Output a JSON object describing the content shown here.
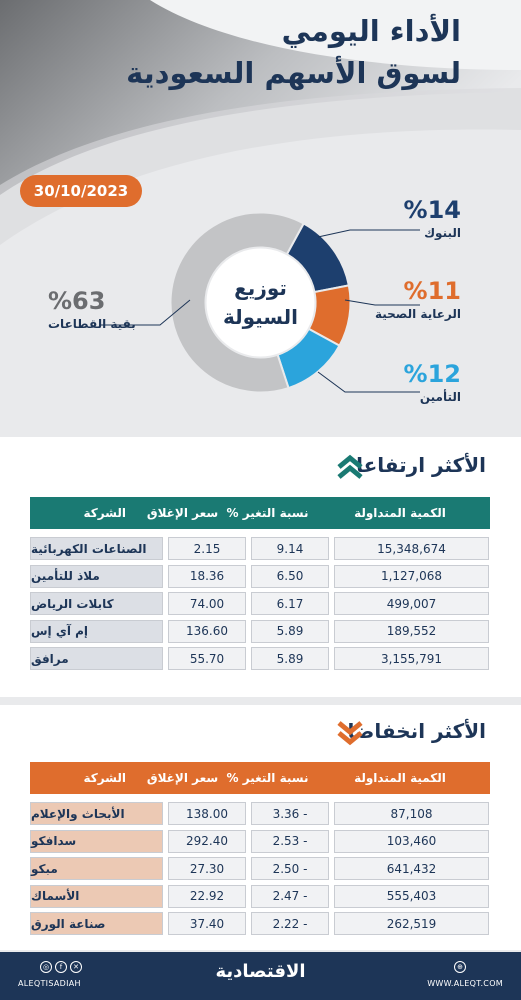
{
  "header": {
    "title_line1": "الأداء اليومي",
    "title_line2": "لسوق الأسهم السعودية",
    "date": "30/10/2023"
  },
  "liquidity": {
    "center_line1": "توزيع",
    "center_line2": "السيولة",
    "slices": [
      {
        "name": "البنوك",
        "percent_label": "%14",
        "value": 14,
        "color": "#1d3f6e"
      },
      {
        "name": "الرعاية الصحية",
        "percent_label": "%11",
        "value": 11,
        "color": "#df6d2d"
      },
      {
        "name": "التأمين",
        "percent_label": "%12",
        "value": 12,
        "color": "#2ba4dc"
      },
      {
        "name": "بقية القطاعات",
        "percent_label": "%63",
        "value": 63,
        "color": "#c3c4c6"
      }
    ]
  },
  "gainers": {
    "title": "الأكثر ارتفاعا",
    "header_color": "#1a7a73",
    "columns": [
      "الشركة",
      "سعر الإغلاق",
      "نسبة التغير %",
      "الكمية المتداولة"
    ],
    "rows": [
      {
        "name": "الصناعات الكهربائية",
        "close": "2.15",
        "change": "9.14",
        "volume": "15,348,674"
      },
      {
        "name": "ملاذ للتأمين",
        "close": "18.36",
        "change": "6.50",
        "volume": "1,127,068"
      },
      {
        "name": "كابلات الرياض",
        "close": "74.00",
        "change": "6.17",
        "volume": "499,007"
      },
      {
        "name": "إم آي إس",
        "close": "136.60",
        "change": "5.89",
        "volume": "189,552"
      },
      {
        "name": "مرافق",
        "close": "55.70",
        "change": "5.89",
        "volume": "3,155,791"
      }
    ]
  },
  "losers": {
    "title": "الأكثر انخفاضا",
    "header_color": "#df6d2d",
    "columns": [
      "الشركة",
      "سعر الإغلاق",
      "نسبة التغير %",
      "الكمية المتداولة"
    ],
    "rows": [
      {
        "name": "الأبحاث والإعلام",
        "close": "138.00",
        "change": "3.36 -",
        "volume": "87,108"
      },
      {
        "name": "سدافكو",
        "close": "292.40",
        "change": "2.53 -",
        "volume": "103,460"
      },
      {
        "name": "مبكو",
        "close": "27.30",
        "change": "2.50 -",
        "volume": "641,432"
      },
      {
        "name": "الأسماك",
        "close": "22.92",
        "change": "2.47 -",
        "volume": "555,403"
      },
      {
        "name": "صناعة الورق",
        "close": "37.40",
        "change": "2.22 -",
        "volume": "262,519"
      }
    ]
  },
  "footer": {
    "brand": "الاقتصادية",
    "handle": "ALEQTISADIAH",
    "website": "WWW.ALEQT.COM",
    "social_icons": [
      "instagram-icon",
      "facebook-icon",
      "x-icon"
    ],
    "web_icon": "globe-icon"
  }
}
